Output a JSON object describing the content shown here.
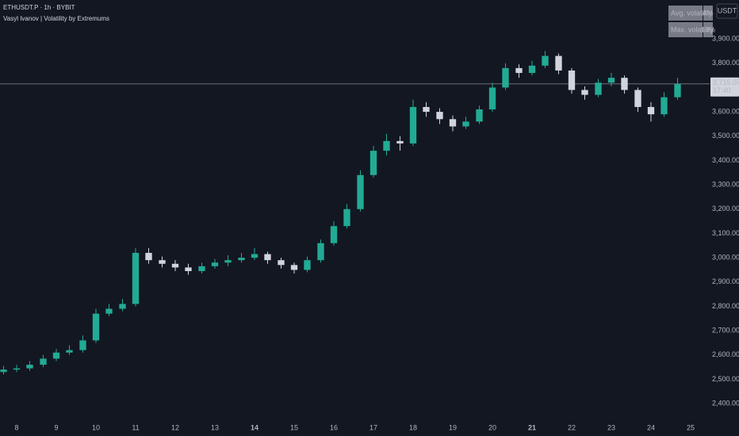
{
  "chart_data": {
    "type": "candlestick",
    "symbol": "ETHUSDT.P · 1h · BYBIT",
    "indicator": "Vasyl Ivanov | Volatility by Extremums",
    "currency_button": "USDT",
    "volatility_table": [
      {
        "label": "Avg. volatility",
        "value": "4%"
      },
      {
        "label": "Max. volatility",
        "value": "13%"
      }
    ],
    "x": [
      7.67,
      8,
      8.33,
      8.67,
      9,
      9.33,
      9.67,
      10,
      10.33,
      10.67,
      11,
      11.33,
      11.67,
      12,
      12.33,
      12.67,
      13,
      13.33,
      13.67,
      14,
      14.33,
      14.67,
      15,
      15.33,
      15.67,
      16,
      16.33,
      16.67,
      17,
      17.33,
      17.67,
      18,
      18.33,
      18.67,
      19,
      19.33,
      19.67,
      20,
      20.33,
      20.67,
      21,
      21.33,
      21.67,
      22,
      22.33,
      22.67,
      23,
      23.33,
      23.67,
      24,
      24.33,
      24.67
    ],
    "open": [
      2530,
      2540,
      2545,
      2560,
      2585,
      2610,
      2620,
      2660,
      2770,
      2790,
      2810,
      3020,
      2990,
      2975,
      2960,
      2945,
      2965,
      2980,
      2990,
      3000,
      3015,
      2990,
      2970,
      2950,
      2990,
      3060,
      3130,
      3200,
      3340,
      3440,
      3480,
      3470,
      3620,
      3600,
      3570,
      3540,
      3560,
      3610,
      3700,
      3780,
      3760,
      3790,
      3830,
      3770,
      3690,
      3670,
      3720,
      3740,
      3690,
      3620,
      3590,
      3660
    ],
    "high": [
      2555,
      2560,
      2575,
      2600,
      2625,
      2640,
      2680,
      2790,
      2810,
      2830,
      3040,
      3040,
      3005,
      2990,
      2975,
      2980,
      2995,
      3010,
      3020,
      3040,
      3025,
      3000,
      2980,
      3005,
      3075,
      3150,
      3220,
      3360,
      3460,
      3510,
      3500,
      3650,
      3640,
      3615,
      3585,
      3580,
      3625,
      3720,
      3800,
      3795,
      3810,
      3850,
      3840,
      3780,
      3705,
      3735,
      3760,
      3750,
      3700,
      3640,
      3680,
      3740
    ],
    "low": [
      2520,
      2530,
      2535,
      2550,
      2575,
      2600,
      2610,
      2650,
      2760,
      2780,
      2800,
      2975,
      2960,
      2945,
      2930,
      2935,
      2955,
      2965,
      2980,
      2990,
      2975,
      2955,
      2935,
      2940,
      2980,
      3050,
      3120,
      3190,
      3330,
      3420,
      3440,
      3460,
      3580,
      3550,
      3520,
      3530,
      3550,
      3600,
      3690,
      3740,
      3750,
      3780,
      3755,
      3675,
      3650,
      3660,
      3705,
      3675,
      3600,
      3560,
      3580,
      3650
    ],
    "close": [
      2540,
      2545,
      2560,
      2585,
      2610,
      2620,
      2660,
      2770,
      2790,
      2810,
      3020,
      2990,
      2975,
      2960,
      2945,
      2965,
      2980,
      2990,
      3000,
      3015,
      2990,
      2970,
      2950,
      2990,
      3060,
      3130,
      3200,
      3340,
      3440,
      3480,
      3470,
      3620,
      3600,
      3570,
      3540,
      3560,
      3610,
      3700,
      3780,
      3760,
      3790,
      3830,
      3770,
      3690,
      3670,
      3720,
      3740,
      3690,
      3620,
      3590,
      3660,
      3715.07
    ],
    "up_color": "#22ab94",
    "down_color": "#d1d4dc",
    "last_price": 3715.07,
    "last_price_label": "3,715.07",
    "countdown": "17:40",
    "xlim": [
      7.58,
      25.48
    ],
    "ylim": [
      2332,
      4060
    ],
    "xticks": [
      8,
      9,
      10,
      11,
      12,
      13,
      14,
      15,
      16,
      17,
      18,
      19,
      20,
      21,
      22,
      23,
      24,
      25
    ],
    "bold_xticks": [
      14,
      21
    ],
    "yticks": [
      {
        "value": 2400,
        "label": "2,400.00"
      },
      {
        "value": 2500,
        "label": "2,500.00"
      },
      {
        "value": 2600,
        "label": "2,600.00"
      },
      {
        "value": 2700,
        "label": "2,700.00"
      },
      {
        "value": 2800,
        "label": "2,800.00"
      },
      {
        "value": 2900,
        "label": "2,900.00"
      },
      {
        "value": 3000,
        "label": "3,000.00"
      },
      {
        "value": 3100,
        "label": "3,100.00"
      },
      {
        "value": 3200,
        "label": "3,200.00"
      },
      {
        "value": 3300,
        "label": "3,300.00"
      },
      {
        "value": 3400,
        "label": "3,400.00"
      },
      {
        "value": 3500,
        "label": "3,500.00"
      },
      {
        "value": 3600,
        "label": "3,600.00"
      },
      {
        "value": 3700,
        "label": "3,700.00"
      },
      {
        "value": 3800,
        "label": "3,800.00"
      },
      {
        "value": 3900,
        "label": "3,900.00"
      }
    ],
    "grid": false
  }
}
